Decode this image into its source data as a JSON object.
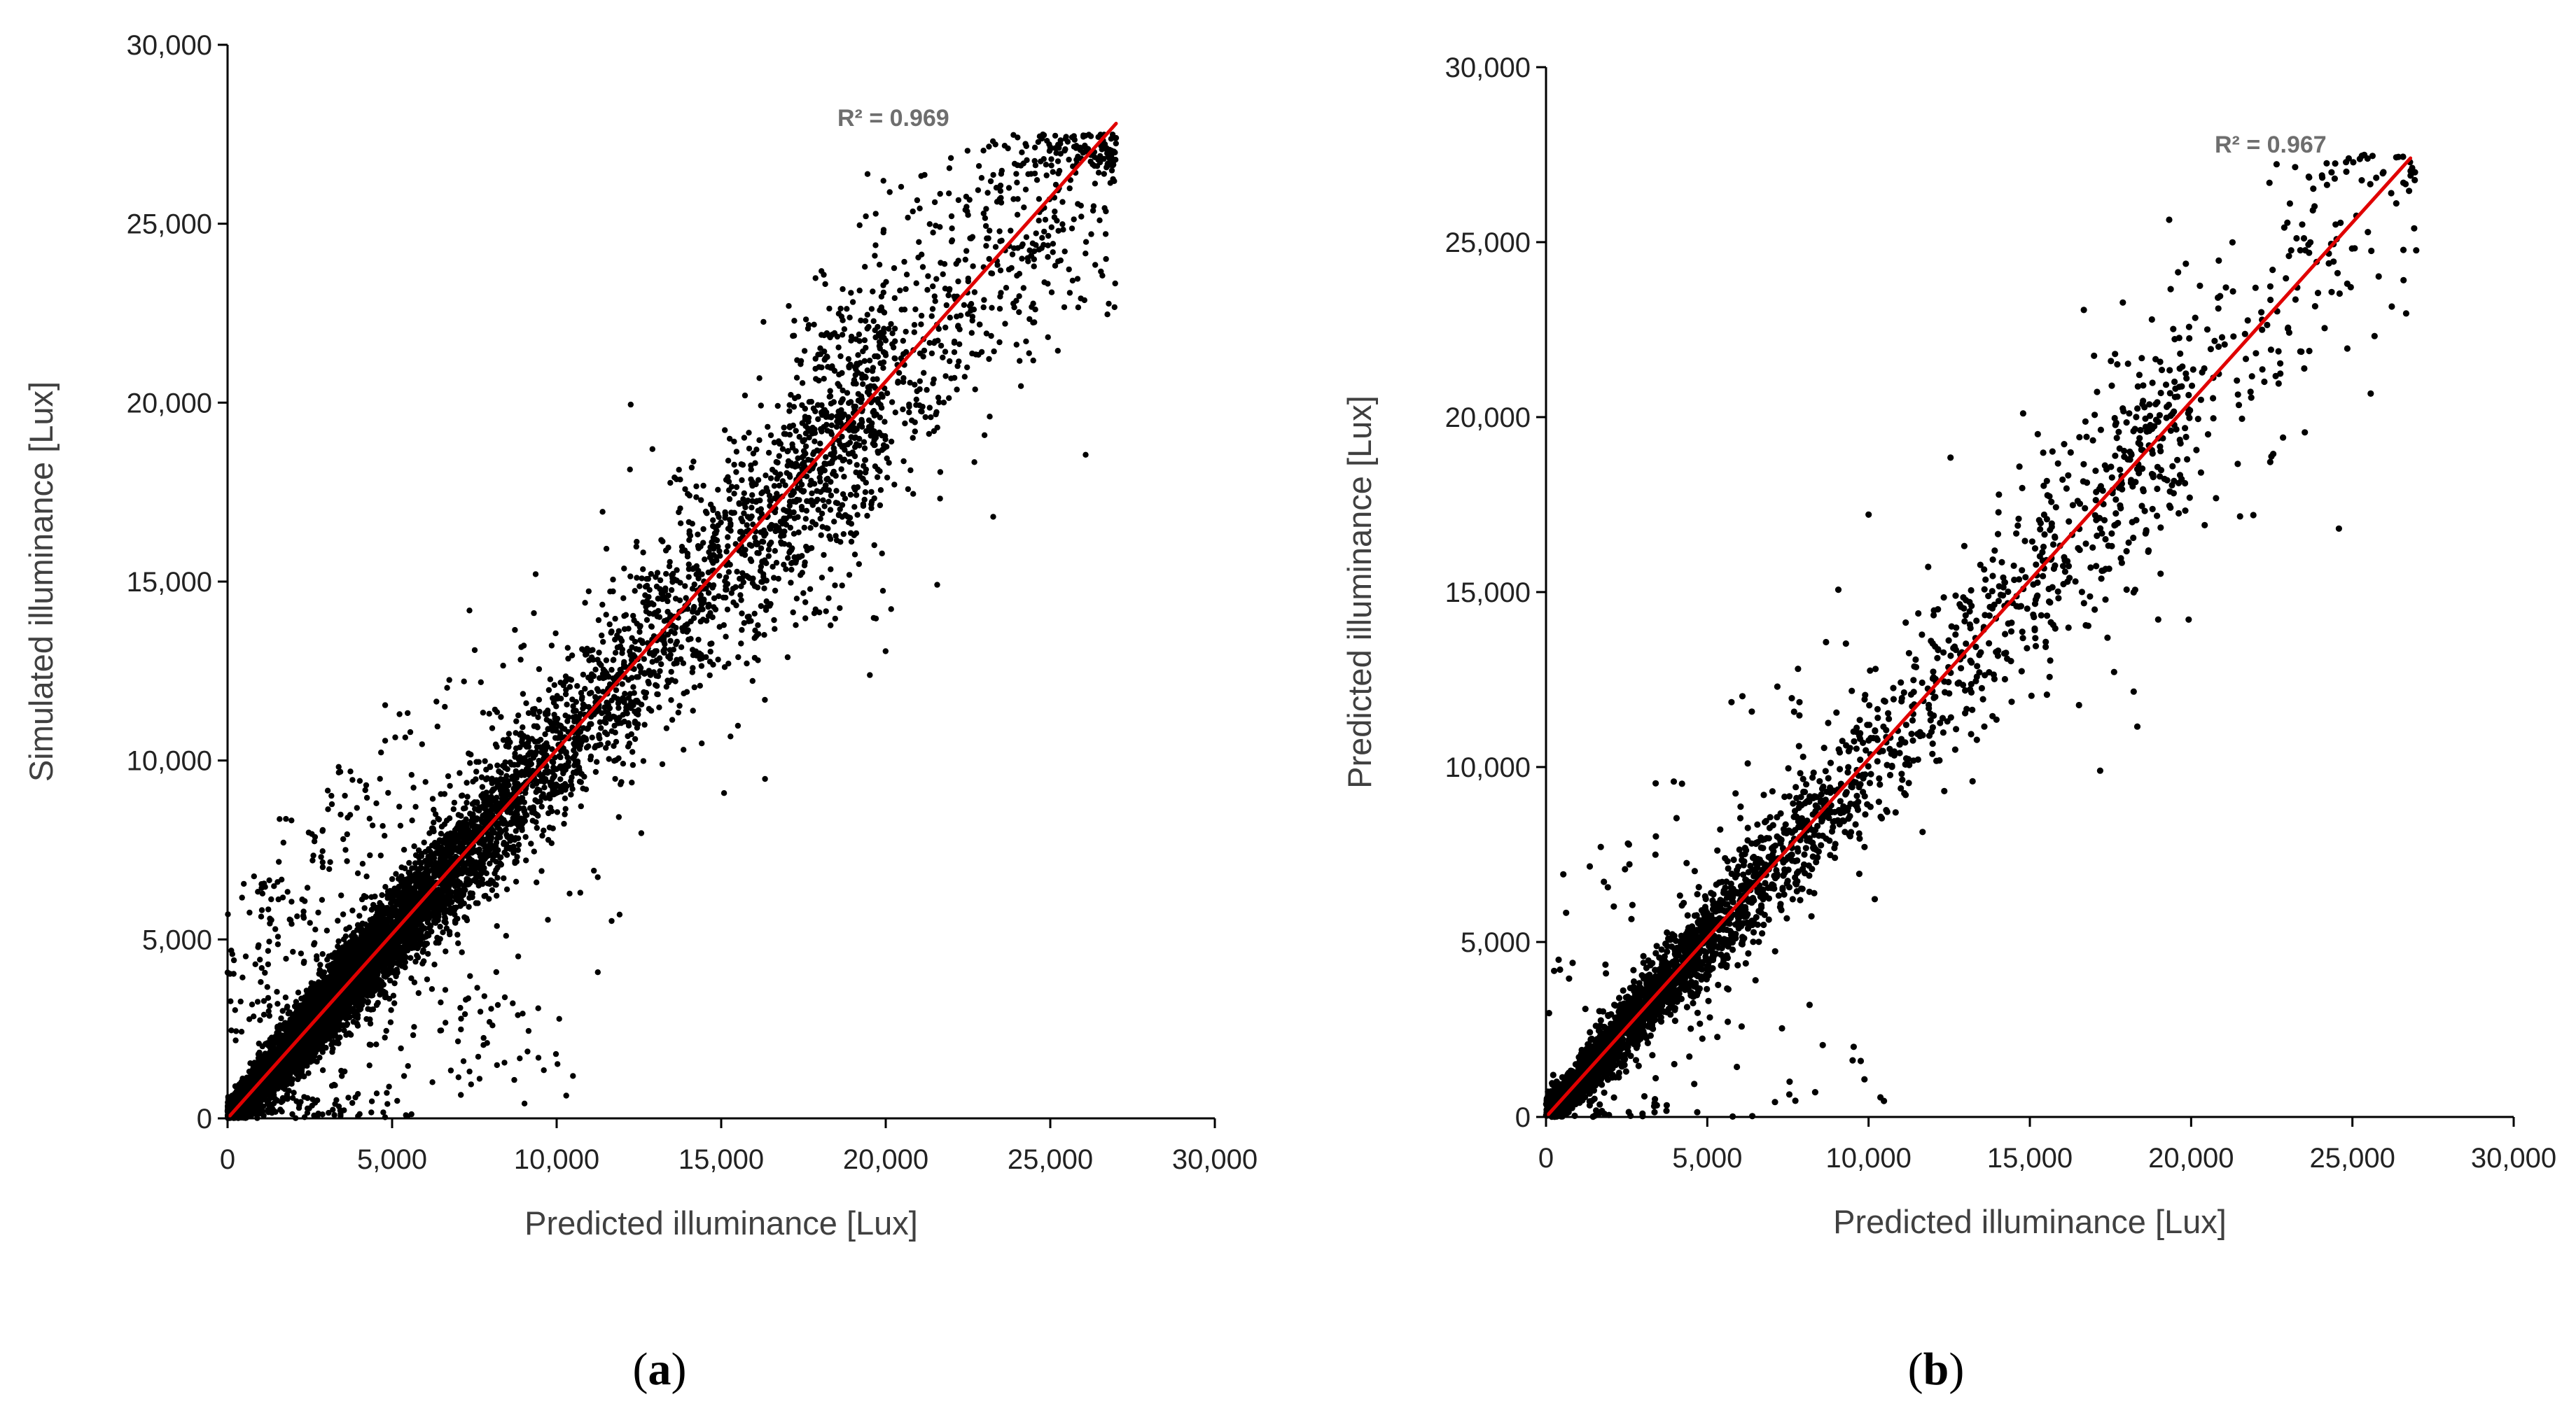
{
  "figure": {
    "panel_a": {
      "open": "(",
      "letter": "a",
      "close": ")"
    },
    "panel_b": {
      "open": "(",
      "letter": "b",
      "close": ")"
    }
  },
  "colors": {
    "points": "#000000",
    "fit_line": "#e00000",
    "axes": "#000000",
    "r2_text": "#6e6e6e"
  },
  "chart_data": [
    {
      "type": "scatter",
      "panel": "(a)",
      "title": "",
      "xlabel": "Predicted illuminance [Lux]",
      "ylabel": "Simulated illuminance [Lux]",
      "xlim": [
        0,
        30000
      ],
      "ylim": [
        0,
        30000
      ],
      "xticks": [
        0,
        5000,
        10000,
        15000,
        20000,
        25000,
        30000
      ],
      "yticks": [
        0,
        5000,
        10000,
        15000,
        20000,
        25000,
        30000
      ],
      "tick_labels": [
        "0",
        "5,000",
        "10,000",
        "15,000",
        "20,000",
        "25,000",
        "30,000"
      ],
      "annotation": "R² = 0.969",
      "r2": 0.969,
      "series": [
        {
          "name": "samples",
          "approx_count": 9000,
          "x_max": 27000,
          "y_max": 27500
        },
        {
          "name": "linear fit",
          "x": [
            0,
            27000
          ],
          "y": [
            0,
            27800
          ]
        }
      ]
    },
    {
      "type": "scatter",
      "panel": "(b)",
      "title": "",
      "xlabel": "Predicted illuminance [Lux]",
      "ylabel": "Predicted illuminance [Lux]",
      "xlim": [
        0,
        30000
      ],
      "ylim": [
        0,
        30000
      ],
      "xticks": [
        0,
        5000,
        10000,
        15000,
        20000,
        25000,
        30000
      ],
      "yticks": [
        0,
        5000,
        10000,
        15000,
        20000,
        25000,
        30000
      ],
      "tick_labels": [
        "0",
        "5,000",
        "10,000",
        "15,000",
        "20,000",
        "25,000",
        "30,000"
      ],
      "annotation": "R² = 0.967",
      "r2": 0.967,
      "series": [
        {
          "name": "samples",
          "approx_count": 3200,
          "x_max": 27000,
          "y_max": 27500
        },
        {
          "name": "linear fit",
          "x": [
            0,
            26800
          ],
          "y": [
            0,
            27400
          ]
        }
      ]
    }
  ]
}
